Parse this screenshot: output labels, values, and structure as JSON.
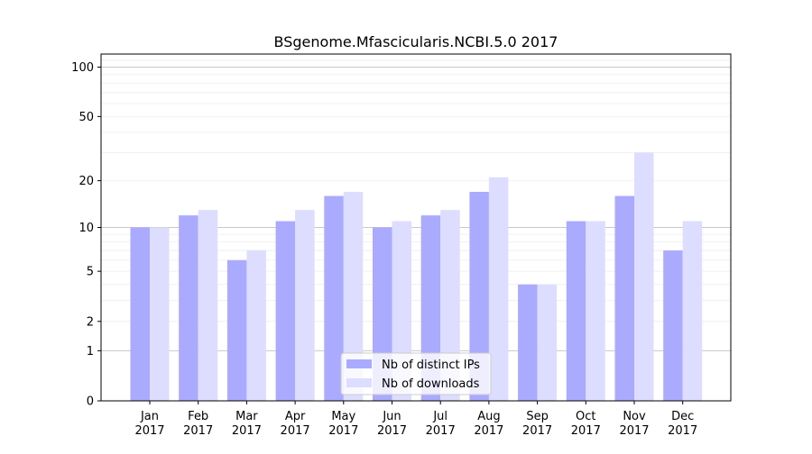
{
  "chart_data": {
    "type": "bar",
    "title": "BSgenome.Mfascicularis.NCBI.5.0 2017",
    "xlabel": "",
    "ylabel": "",
    "y_scale": "symlog",
    "ylim": [
      0,
      120
    ],
    "y_ticks": [
      0,
      1,
      2,
      5,
      10,
      20,
      50,
      100
    ],
    "y_tick_labels": [
      "0",
      "1",
      "2",
      "5",
      "10",
      "20",
      "50",
      "100"
    ],
    "categories": [
      [
        "Jan",
        "2017"
      ],
      [
        "Feb",
        "2017"
      ],
      [
        "Mar",
        "2017"
      ],
      [
        "Apr",
        "2017"
      ],
      [
        "May",
        "2017"
      ],
      [
        "Jun",
        "2017"
      ],
      [
        "Jul",
        "2017"
      ],
      [
        "Aug",
        "2017"
      ],
      [
        "Sep",
        "2017"
      ],
      [
        "Oct",
        "2017"
      ],
      [
        "Nov",
        "2017"
      ],
      [
        "Dec",
        "2017"
      ]
    ],
    "series": [
      {
        "name": "Nb of distinct IPs",
        "color": "#aaaaff",
        "values": [
          10,
          12,
          6,
          11,
          16,
          10,
          12,
          17,
          4,
          11,
          16,
          7
        ]
      },
      {
        "name": "Nb of downloads",
        "color": "#ddddff",
        "values": [
          10,
          13,
          7,
          13,
          17,
          11,
          13,
          21,
          4,
          11,
          30,
          11
        ]
      }
    ],
    "legend": "bottom-center",
    "grid": true
  }
}
